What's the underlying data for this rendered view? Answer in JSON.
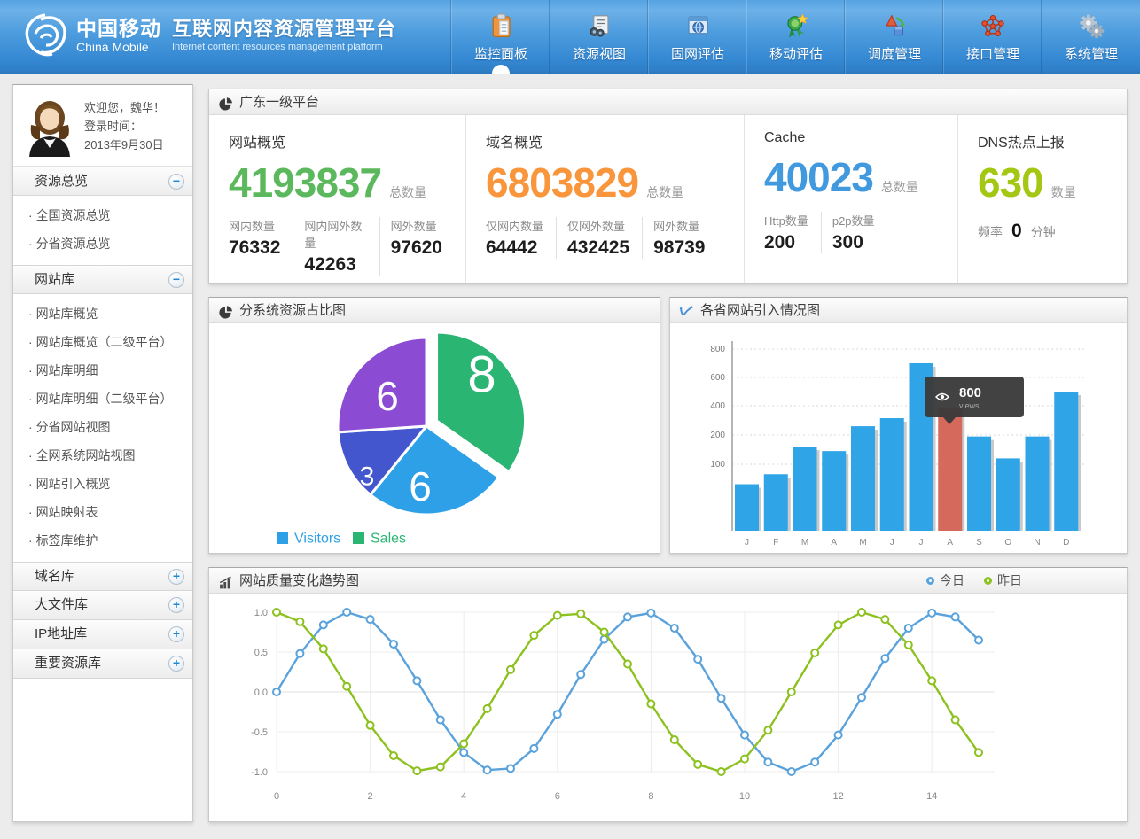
{
  "header": {
    "brand": {
      "logo_cn": "中国移动",
      "logo_en": "China Mobile",
      "title": "互联网内容资源管理平台",
      "subtitle": "Internet content resources management platform"
    },
    "nav": [
      {
        "label": "监控面板",
        "icon": "clipboard-icon",
        "active": true
      },
      {
        "label": "资源视图",
        "icon": "resource-view-icon",
        "active": false
      },
      {
        "label": "固网评估",
        "icon": "fixed-network-icon",
        "active": false
      },
      {
        "label": "移动评估",
        "icon": "mobile-eval-icon",
        "active": false
      },
      {
        "label": "调度管理",
        "icon": "dispatch-icon",
        "active": false
      },
      {
        "label": "接口管理",
        "icon": "interface-icon",
        "active": false
      },
      {
        "label": "系统管理",
        "icon": "system-icon",
        "active": false
      }
    ]
  },
  "sidebar": {
    "user": {
      "welcome": "欢迎您，魏华！",
      "login_label": "登录时间：",
      "login_date": "2013年9月30日"
    },
    "sections": [
      {
        "title": "资源总览",
        "expanded": true,
        "items": [
          "全国资源总览",
          "分省资源总览"
        ]
      },
      {
        "title": "网站库",
        "expanded": true,
        "items": [
          "网站库概览",
          "网站库概览（二级平台）",
          "网站库明细",
          "网站库明细（二级平台）",
          "分省网站视图",
          "全网系统网站视图",
          "网站引入概览",
          "网站映射表",
          "标签库维护"
        ]
      },
      {
        "title": "域名库",
        "expanded": false,
        "items": []
      },
      {
        "title": "大文件库",
        "expanded": false,
        "items": []
      },
      {
        "title": "IP地址库",
        "expanded": false,
        "items": []
      },
      {
        "title": "重要资源库",
        "expanded": false,
        "items": []
      }
    ]
  },
  "overview": {
    "title": "广东一级平台",
    "cards": [
      {
        "title": "网站概览",
        "value": "4193837",
        "value_color": "#5cb85c",
        "unit": "总数量",
        "stats": [
          {
            "label": "网内数量",
            "value": "76332"
          },
          {
            "label": "网内网外数量",
            "value": "42263"
          },
          {
            "label": "网外数量",
            "value": "97620"
          }
        ]
      },
      {
        "title": "域名概览",
        "value": "6803829",
        "value_color": "#f9953b",
        "unit": "总数量",
        "stats": [
          {
            "label": "仅网内数量",
            "value": "64442"
          },
          {
            "label": "仅网外数量",
            "value": "432425"
          },
          {
            "label": "网外数量",
            "value": "98739"
          }
        ]
      },
      {
        "title": "Cache",
        "value": "40023",
        "value_color": "#4199de",
        "unit": "总数量",
        "stats": [
          {
            "label": "Http数量",
            "value": "200"
          },
          {
            "label": "p2p数量",
            "value": "300"
          }
        ]
      },
      {
        "title": "DNS热点上报",
        "value": "630",
        "value_color": "#a3c713",
        "unit": "数量",
        "freq": {
          "label": "频率",
          "value": "0",
          "suffix": "分钟"
        }
      }
    ]
  },
  "chart_data": [
    {
      "type": "pie",
      "title": "分系统资源占比图",
      "slices": [
        {
          "label": "8",
          "value": 8,
          "color": "#2ab573",
          "exploded": true
        },
        {
          "label": "6",
          "value": 6,
          "color": "#2da0e8",
          "exploded": false
        },
        {
          "label": "3",
          "value": 3,
          "color": "#4356ce",
          "exploded": false
        },
        {
          "label": "6",
          "value": 6,
          "color": "#8b4bd3",
          "exploded": false
        }
      ],
      "legend": [
        {
          "label": "Visitors",
          "color": "#2da0e8"
        },
        {
          "label": "Sales",
          "color": "#2ab573"
        }
      ],
      "legend_position": "bottom"
    },
    {
      "type": "bar",
      "title": "各省网站引入情况图",
      "categories": [
        "J",
        "F",
        "M",
        "A",
        "M",
        "J",
        "J",
        "A",
        "S",
        "O",
        "N",
        "D"
      ],
      "values": [
        70,
        85,
        160,
        145,
        260,
        315,
        700,
        380,
        195,
        120,
        195,
        500
      ],
      "bar_color": "#2fa4e7",
      "highlight_index": 7,
      "highlight_color": "#d4695c",
      "y_ticks": [
        800,
        600,
        400,
        200,
        100
      ],
      "grid": "dotted",
      "tooltip": {
        "value": "800",
        "unit": "views",
        "icon": "eye-icon"
      }
    },
    {
      "type": "line",
      "title": "网站质量变化趋势图",
      "x": [
        0,
        0.5,
        1,
        1.5,
        2,
        2.5,
        3,
        3.5,
        4,
        4.5,
        5,
        5.5,
        6,
        6.5,
        7,
        7.5,
        8,
        8.5,
        9,
        9.5,
        10,
        10.5,
        11,
        11.5,
        12,
        12.5,
        13,
        13.5,
        14,
        14.5,
        15
      ],
      "x_ticks": [
        0,
        2,
        4,
        6,
        8,
        10,
        12,
        14
      ],
      "y_ticks": [
        "1.0",
        "0.5",
        "0.0",
        "-0.5",
        "-1.0"
      ],
      "ylim": [
        -1.1,
        1.1
      ],
      "grid": "on",
      "legend_position": "top-right",
      "series": [
        {
          "name": "今日",
          "color": "#5aa2dc",
          "values": [
            0,
            0.48,
            0.84,
            1,
            0.91,
            0.6,
            0.14,
            -0.35,
            -0.76,
            -0.98,
            -0.96,
            -0.71,
            -0.28,
            0.22,
            0.66,
            0.94,
            0.99,
            0.8,
            0.41,
            -0.08,
            -0.54,
            -0.88,
            -1,
            -0.88,
            -0.54,
            -0.07,
            0.42,
            0.8,
            0.99,
            0.94,
            0.65
          ]
        },
        {
          "name": "昨日",
          "color": "#8cc11f",
          "values": [
            1,
            0.88,
            0.54,
            0.07,
            -0.42,
            -0.8,
            -0.99,
            -0.94,
            -0.65,
            -0.21,
            0.28,
            0.71,
            0.96,
            0.98,
            0.75,
            0.35,
            -0.15,
            -0.6,
            -0.91,
            -1,
            -0.84,
            -0.48,
            0,
            0.49,
            0.84,
            1,
            0.91,
            0.59,
            0.14,
            -0.35,
            -0.76
          ]
        }
      ]
    }
  ]
}
